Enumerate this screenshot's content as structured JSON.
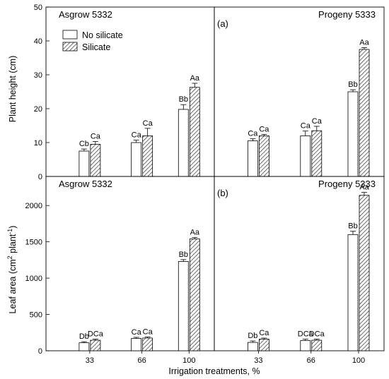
{
  "chart_data": {
    "type": "bar",
    "xlabel": "Irrigation treatments, %",
    "categories": [
      "33",
      "66",
      "100"
    ],
    "legend": {
      "placement": "top-left",
      "entries": [
        {
          "name": "No silicate",
          "pattern": "open"
        },
        {
          "name": "Silicate",
          "pattern": "hatched"
        }
      ]
    },
    "rows": [
      {
        "ylabel": "Plant height (cm)",
        "ylabel_unit_sup": "",
        "ylabel_suffix": "",
        "ylim": [
          0,
          50
        ],
        "yticks": [
          0,
          10,
          20,
          30,
          40,
          50
        ],
        "panels": [
          {
            "title": "Asgrow 5332",
            "tag": "",
            "series": [
              {
                "name": "No silicate",
                "values": [
                  7.5,
                  10,
                  19.8
                ],
                "errors": [
                  0.6,
                  0.7,
                  1.4
                ],
                "letters": [
                  "Cb",
                  "Ca",
                  "Bb"
                ]
              },
              {
                "name": "Silicate",
                "values": [
                  9.5,
                  12,
                  26.3
                ],
                "errors": [
                  0.8,
                  2.2,
                  1.2
                ],
                "letters": [
                  "Ca",
                  "Ca",
                  "Aa"
                ]
              }
            ]
          },
          {
            "title": "Progeny 5333",
            "tag": "(a)",
            "series": [
              {
                "name": "No silicate",
                "values": [
                  10.5,
                  12,
                  25
                ],
                "errors": [
                  0.6,
                  1.4,
                  0.6
                ],
                "letters": [
                  "Ca",
                  "Ca",
                  "Bb"
                ]
              },
              {
                "name": "Silicate",
                "values": [
                  12,
                  13.5,
                  37.5
                ],
                "errors": [
                  0.4,
                  1.3,
                  0.5
                ],
                "letters": [
                  "Ca",
                  "Ca",
                  "Aa"
                ]
              }
            ]
          }
        ]
      },
      {
        "ylabel": "Leaf area (cm",
        "ylabel_unit_sup": "2",
        "ylabel_suffix": " plant",
        "ylabel_suffix_sup": "-1",
        "ylabel_close": ")",
        "ylim": [
          0,
          2400
        ],
        "yticks": [
          0,
          500,
          1000,
          1500,
          2000
        ],
        "panels": [
          {
            "title": "Asgrow 5332",
            "tag": "",
            "series": [
              {
                "name": "No silicate",
                "values": [
                  110,
                  170,
                  1230
                ],
                "errors": [
                  15,
                  15,
                  25
                ],
                "letters": [
                  "Db",
                  "Ca",
                  "Bb"
                ]
              },
              {
                "name": "Silicate",
                "values": [
                  145,
                  175,
                  1540
                ],
                "errors": [
                  15,
                  15,
                  20
                ],
                "letters": [
                  "DCa",
                  "Ca",
                  "Aa"
                ]
              }
            ]
          },
          {
            "title": "Progeny 5333",
            "tag": "(b)",
            "series": [
              {
                "name": "No silicate",
                "values": [
                  115,
                  140,
                  1600
                ],
                "errors": [
                  20,
                  20,
                  45
                ],
                "letters": [
                  "Db",
                  "DCa",
                  "Bb"
                ]
              },
              {
                "name": "Silicate",
                "values": [
                  160,
                  145,
                  2140
                ],
                "errors": [
                  15,
                  15,
                  40
                ],
                "letters": [
                  "Ca",
                  "DCa",
                  "Aa"
                ]
              }
            ]
          }
        ]
      }
    ]
  }
}
